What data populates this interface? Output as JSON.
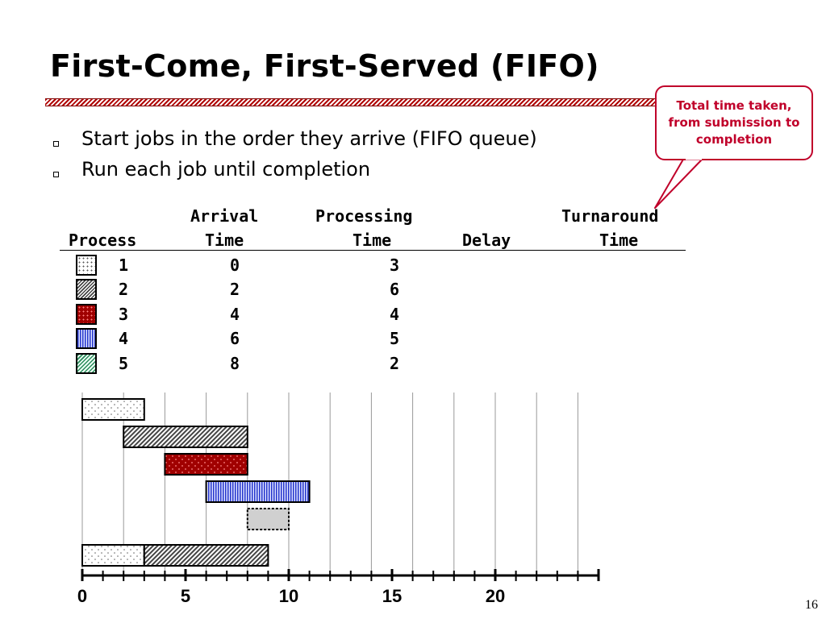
{
  "slide": {
    "title": "First-Come, First-Served (FIFO)",
    "page_number": "16"
  },
  "bullets": [
    {
      "text": "Start jobs in the order they arrive (FIFO queue)"
    },
    {
      "text": "Run each job until completion"
    }
  ],
  "callout": {
    "text": "Total time taken, from submission to completion"
  },
  "table": {
    "headers": {
      "process": "Process",
      "arrival_1": "Arrival",
      "arrival_2": "Time",
      "processing_1": "Processing",
      "processing_2": "Time",
      "delay": "Delay",
      "turnaround_1": "Turnaround",
      "turnaround_2": "Time"
    },
    "rows": [
      {
        "process": "1",
        "arrival": "0",
        "processing": "3",
        "pattern": "dots"
      },
      {
        "process": "2",
        "arrival": "2",
        "processing": "6",
        "pattern": "diagonal-hatch"
      },
      {
        "process": "3",
        "arrival": "4",
        "processing": "4",
        "pattern": "red-dots"
      },
      {
        "process": "4",
        "arrival": "6",
        "processing": "5",
        "pattern": "blue-vertical"
      },
      {
        "process": "5",
        "arrival": "8",
        "processing": "2",
        "pattern": "green-hatch"
      }
    ]
  },
  "gantt": {
    "axis_labels": [
      "0",
      "5",
      "10",
      "15",
      "20"
    ],
    "axis_max": 25,
    "jobs": [
      {
        "process": "1",
        "start": 0,
        "end": 3
      },
      {
        "process": "2",
        "start": 2,
        "end": 8
      },
      {
        "process": "3",
        "start": 4,
        "end": 8
      },
      {
        "process": "4",
        "start": 6,
        "end": 11
      },
      {
        "process": "5",
        "start": 8,
        "end": 10
      }
    ],
    "schedule": [
      {
        "process": "1",
        "start": 0,
        "end": 3
      },
      {
        "process": "2",
        "start": 3,
        "end": 9
      }
    ]
  },
  "colors": {
    "title_rule": "#b00000",
    "callout": "#c0002a",
    "process3": "#a00000",
    "process4": "#2233cc",
    "process5_bar": "#d0d0d0"
  }
}
